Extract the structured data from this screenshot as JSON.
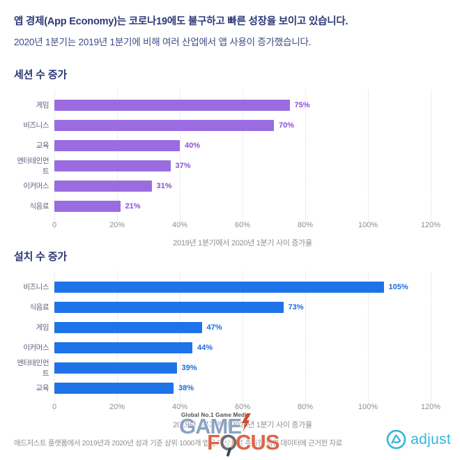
{
  "header": {
    "title": "앱 경제(App Economy)는 코로나19에도 불구하고 빠른 성장을 보이고 있습니다.",
    "subtitle": "2020년 1분기는 2019년 1분기에 비해 여러 산업에서 앱 사용이 증가했습니다."
  },
  "chart_data": [
    {
      "type": "bar",
      "orientation": "horizontal",
      "title": "세션 수 증가",
      "categories": [
        "게임",
        "비즈니스",
        "교육",
        "엔터테인먼트",
        "이커머스",
        "식음료"
      ],
      "values": [
        75,
        70,
        40,
        37,
        31,
        21
      ],
      "value_labels": [
        "75%",
        "70%",
        "40%",
        "37%",
        "31%",
        "21%"
      ],
      "xlabel": "2019년 1분기에서 2020년 1분기 사이 증가율",
      "xlim": [
        0,
        120
      ],
      "xticks": [
        "0",
        "20%",
        "40%",
        "60%",
        "80%",
        "100%",
        "120%"
      ],
      "grid": "dotted-vertical",
      "legend": "none",
      "bar_color": "#9a6ce0",
      "value_color": "#8a50d8"
    },
    {
      "type": "bar",
      "orientation": "horizontal",
      "title": "설치 수 증가",
      "categories": [
        "비즈니스",
        "식음료",
        "게임",
        "이커머스",
        "엔터테인먼트",
        "교육"
      ],
      "values": [
        105,
        73,
        47,
        44,
        39,
        38
      ],
      "value_labels": [
        "105%",
        "73%",
        "47%",
        "44%",
        "39%",
        "38%"
      ],
      "xlabel": "2019년 1분기에서 2020년 1분기 사이 증가율",
      "xlim": [
        0,
        120
      ],
      "xticks": [
        "0",
        "20%",
        "40%",
        "60%",
        "80%",
        "100%",
        "120%"
      ],
      "grid": "dotted-vertical",
      "legend": "none",
      "bar_color": "#1e73e8",
      "value_color": "#1a6be0"
    }
  ],
  "footer": {
    "source_note": "애드저스트 플랫폼에서 2019년과 2020년 성과 기준 상위 1000개 앱을 대상으로 추출한 익명 데이터에 근거한 자료",
    "watermark": {
      "tagline": "Global No.1 Game Media",
      "word1": "GAME",
      "word2": "FOCUS",
      "word1_color": "#8ba3c3",
      "word2_color": "#df6448"
    },
    "brand": {
      "name": "adjust",
      "color": "#35b5d9"
    }
  },
  "colors": {
    "headline": "#2c3876",
    "category_label": "#5f6781",
    "axis_text": "#8e8e96",
    "session_bar": "#9a6ce0",
    "install_bar": "#1e73e8"
  }
}
